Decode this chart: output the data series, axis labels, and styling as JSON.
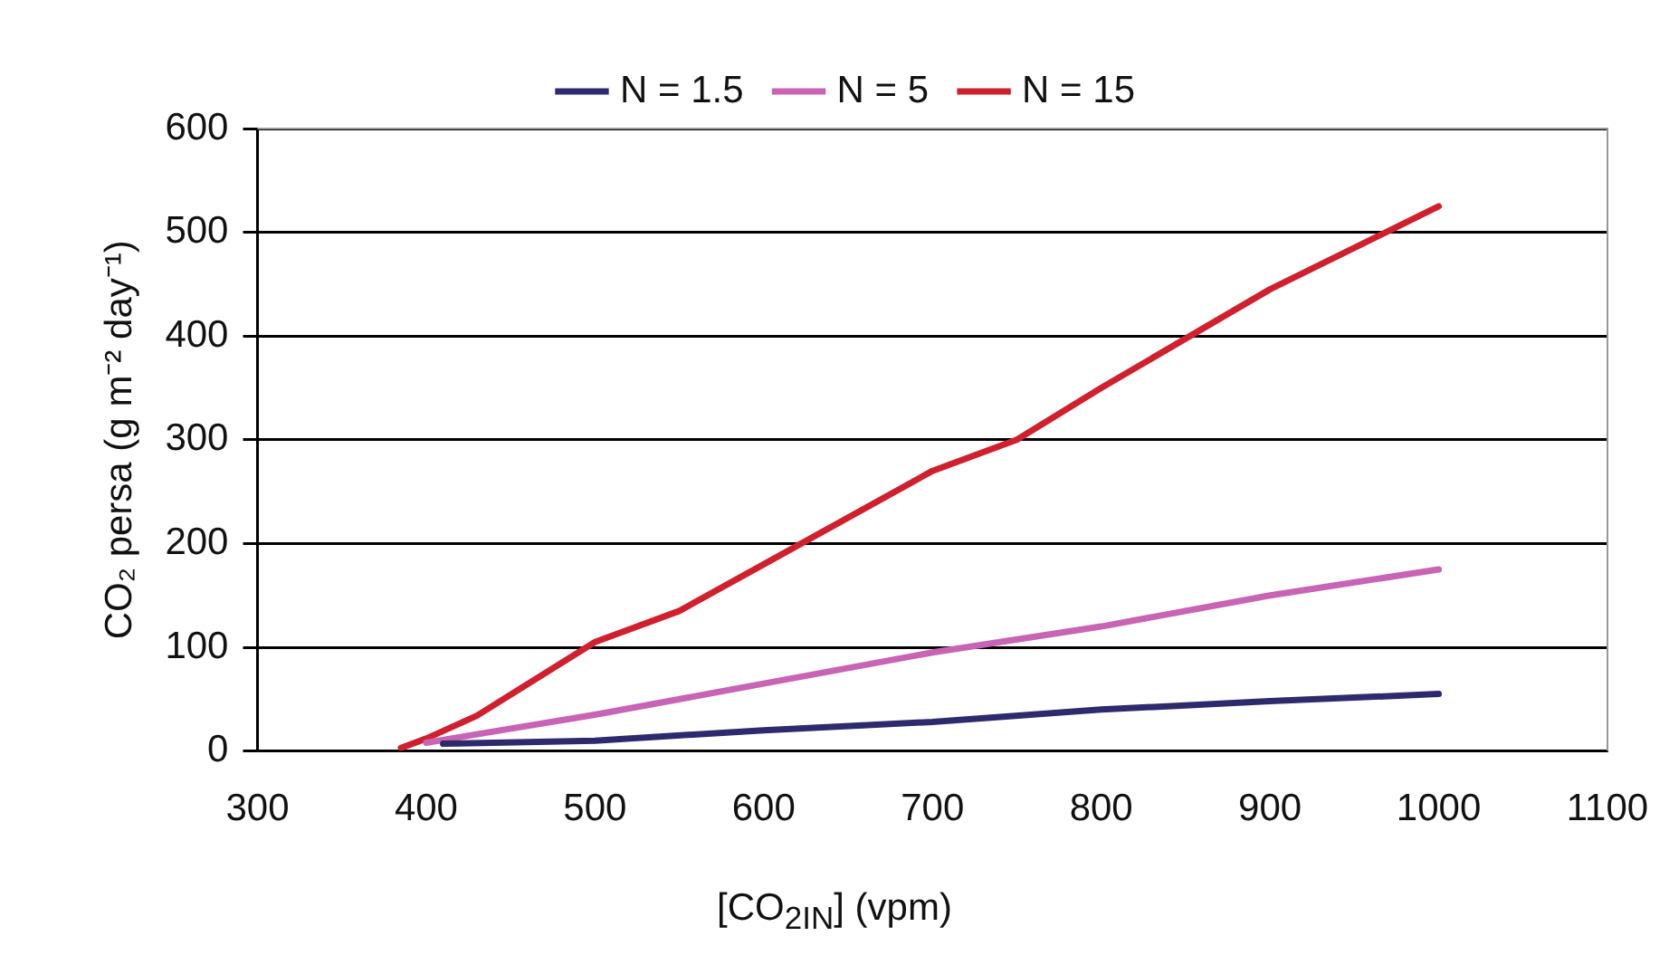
{
  "chart_data": {
    "type": "line",
    "xlabel": "[CO$_{2IN}$] (vpm)",
    "ylabel": "CO₂ persa (g m⁻² day⁻¹)",
    "xlim": [
      300,
      1100
    ],
    "xticks": [
      300,
      400,
      500,
      600,
      700,
      800,
      900,
      1000,
      1100
    ],
    "ylim": [
      0,
      600
    ],
    "yticks": [
      0,
      100,
      200,
      300,
      400,
      500,
      600
    ],
    "grid": "y",
    "legend": "top",
    "marker": "none",
    "line_style": "solid",
    "series": [
      {
        "name": "N = 1.5",
        "color": "#2e2a6e",
        "x": [
          410,
          500,
          600,
          700,
          800,
          900,
          1000
        ],
        "values": [
          7,
          10,
          20,
          28,
          40,
          48,
          55
        ]
      },
      {
        "name": "N = 5",
        "color": "#c864b4",
        "x": [
          400,
          500,
          600,
          700,
          800,
          900,
          1000
        ],
        "values": [
          8,
          35,
          65,
          95,
          120,
          150,
          175
        ]
      },
      {
        "name": "N = 15",
        "color": "#d0202e",
        "x": [
          385,
          400,
          430,
          500,
          550,
          600,
          700,
          750,
          800,
          900,
          1000
        ],
        "values": [
          3,
          12,
          34,
          105,
          135,
          180,
          270,
          300,
          350,
          445,
          525
        ]
      }
    ]
  }
}
